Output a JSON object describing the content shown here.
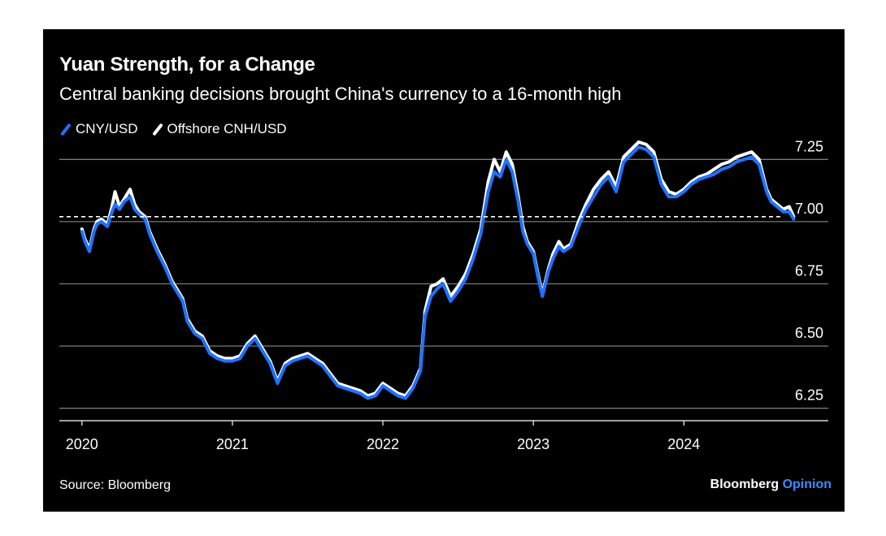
{
  "title": "Yuan Strength, for a Change",
  "subtitle": "Central banking decisions brought China's currency to a 16-month high",
  "source": "Source: Bloomberg",
  "brand": {
    "name": "Bloomberg",
    "suffix": "Opinion"
  },
  "colors": {
    "background": "#000000",
    "cny": "#1f73ff",
    "cnh": "#ffffff",
    "grid": "#7a7a7a",
    "text": "#ffffff",
    "brand_accent": "#3a8cff"
  },
  "chart_data": {
    "type": "line",
    "title": "Yuan Strength, for a Change",
    "subtitle": "Central banking decisions brought China's currency to a 16-month high",
    "xlabel": "",
    "ylabel": "",
    "ylim": [
      6.2,
      7.3
    ],
    "xlim": [
      2019.85,
      2024.96
    ],
    "y_ticks": [
      6.25,
      6.5,
      6.75,
      7.0,
      7.25
    ],
    "y_tick_labels": [
      "6.25",
      "6.50",
      "6.75",
      "7.00",
      "7.25"
    ],
    "x_ticks": [
      2020,
      2021,
      2022,
      2023,
      2024
    ],
    "x_tick_labels": [
      "2020",
      "2021",
      "2022",
      "2023",
      "2024"
    ],
    "reference_line": {
      "y": 7.02,
      "style": "dashed"
    },
    "grid": true,
    "legend_position": "top-left",
    "series": [
      {
        "name": "CNY/USD",
        "color": "#1f73ff",
        "x": [
          2020.0,
          2020.02,
          2020.05,
          2020.08,
          2020.1,
          2020.13,
          2020.17,
          2020.2,
          2020.22,
          2020.25,
          2020.28,
          2020.32,
          2020.35,
          2020.38,
          2020.42,
          2020.45,
          2020.5,
          2020.55,
          2020.6,
          2020.63,
          2020.67,
          2020.7,
          2020.75,
          2020.8,
          2020.85,
          2020.9,
          2020.95,
          2021.0,
          2021.05,
          2021.1,
          2021.15,
          2021.2,
          2021.25,
          2021.3,
          2021.35,
          2021.4,
          2021.45,
          2021.5,
          2021.55,
          2021.6,
          2021.65,
          2021.7,
          2021.75,
          2021.8,
          2021.85,
          2021.9,
          2021.95,
          2022.0,
          2022.05,
          2022.1,
          2022.15,
          2022.2,
          2022.25,
          2022.28,
          2022.32,
          2022.36,
          2022.4,
          2022.45,
          2022.5,
          2022.55,
          2022.6,
          2022.65,
          2022.7,
          2022.74,
          2022.78,
          2022.82,
          2022.86,
          2022.9,
          2022.93,
          2022.96,
          2023.0,
          2023.03,
          2023.06,
          2023.1,
          2023.13,
          2023.17,
          2023.2,
          2023.25,
          2023.3,
          2023.35,
          2023.4,
          2023.45,
          2023.5,
          2023.55,
          2023.6,
          2023.65,
          2023.7,
          2023.75,
          2023.8,
          2023.85,
          2023.9,
          2023.95,
          2024.0,
          2024.05,
          2024.1,
          2024.15,
          2024.2,
          2024.25,
          2024.3,
          2024.35,
          2024.4,
          2024.45,
          2024.5,
          2024.55,
          2024.58,
          2024.62,
          2024.66,
          2024.7,
          2024.73
        ],
        "values": [
          6.96,
          6.92,
          6.88,
          6.96,
          6.99,
          7.0,
          6.98,
          7.04,
          7.07,
          7.05,
          7.08,
          7.1,
          7.05,
          7.03,
          7.01,
          6.95,
          6.88,
          6.82,
          6.75,
          6.72,
          6.68,
          6.6,
          6.55,
          6.53,
          6.47,
          6.45,
          6.44,
          6.44,
          6.45,
          6.5,
          6.53,
          6.48,
          6.43,
          6.35,
          6.42,
          6.44,
          6.45,
          6.46,
          6.44,
          6.42,
          6.38,
          6.34,
          6.33,
          6.32,
          6.31,
          6.29,
          6.3,
          6.34,
          6.32,
          6.3,
          6.29,
          6.33,
          6.4,
          6.62,
          6.7,
          6.73,
          6.75,
          6.68,
          6.72,
          6.77,
          6.85,
          6.95,
          7.12,
          7.2,
          7.18,
          7.25,
          7.2,
          7.08,
          6.96,
          6.91,
          6.87,
          6.78,
          6.7,
          6.8,
          6.85,
          6.9,
          6.88,
          6.9,
          6.98,
          7.05,
          7.1,
          7.15,
          7.18,
          7.12,
          7.24,
          7.27,
          7.3,
          7.29,
          7.26,
          7.15,
          7.1,
          7.1,
          7.12,
          7.15,
          7.17,
          7.18,
          7.19,
          7.21,
          7.22,
          7.24,
          7.25,
          7.26,
          7.23,
          7.12,
          7.08,
          7.06,
          7.04,
          7.04,
          7.01
        ]
      },
      {
        "name": "Offshore CNH/USD",
        "color": "#ffffff",
        "x": [
          2020.0,
          2020.02,
          2020.05,
          2020.08,
          2020.1,
          2020.13,
          2020.17,
          2020.2,
          2020.22,
          2020.25,
          2020.28,
          2020.32,
          2020.35,
          2020.38,
          2020.42,
          2020.45,
          2020.5,
          2020.55,
          2020.6,
          2020.63,
          2020.67,
          2020.7,
          2020.75,
          2020.8,
          2020.85,
          2020.9,
          2020.95,
          2021.0,
          2021.05,
          2021.1,
          2021.15,
          2021.2,
          2021.25,
          2021.3,
          2021.35,
          2021.4,
          2021.45,
          2021.5,
          2021.55,
          2021.6,
          2021.65,
          2021.7,
          2021.75,
          2021.8,
          2021.85,
          2021.9,
          2021.95,
          2022.0,
          2022.05,
          2022.1,
          2022.15,
          2022.2,
          2022.25,
          2022.28,
          2022.32,
          2022.36,
          2022.4,
          2022.45,
          2022.5,
          2022.55,
          2022.6,
          2022.65,
          2022.7,
          2022.74,
          2022.78,
          2022.82,
          2022.86,
          2022.9,
          2022.93,
          2022.96,
          2023.0,
          2023.03,
          2023.06,
          2023.1,
          2023.13,
          2023.17,
          2023.2,
          2023.25,
          2023.3,
          2023.35,
          2023.4,
          2023.45,
          2023.5,
          2023.55,
          2023.6,
          2023.65,
          2023.7,
          2023.75,
          2023.8,
          2023.85,
          2023.9,
          2023.95,
          2024.0,
          2024.05,
          2024.1,
          2024.15,
          2024.2,
          2024.25,
          2024.3,
          2024.35,
          2024.4,
          2024.45,
          2024.5,
          2024.55,
          2024.58,
          2024.62,
          2024.66,
          2024.7,
          2024.73
        ],
        "values": [
          6.97,
          6.93,
          6.89,
          6.97,
          7.0,
          7.01,
          6.99,
          7.06,
          7.12,
          7.06,
          7.09,
          7.13,
          7.07,
          7.04,
          7.02,
          6.96,
          6.89,
          6.83,
          6.76,
          6.73,
          6.69,
          6.61,
          6.56,
          6.54,
          6.48,
          6.46,
          6.45,
          6.45,
          6.46,
          6.51,
          6.54,
          6.49,
          6.44,
          6.36,
          6.43,
          6.45,
          6.46,
          6.47,
          6.45,
          6.43,
          6.39,
          6.35,
          6.34,
          6.33,
          6.32,
          6.3,
          6.31,
          6.35,
          6.33,
          6.31,
          6.3,
          6.34,
          6.41,
          6.64,
          6.74,
          6.75,
          6.77,
          6.7,
          6.74,
          6.79,
          6.87,
          6.97,
          7.16,
          7.25,
          7.2,
          7.28,
          7.23,
          7.1,
          6.98,
          6.92,
          6.88,
          6.79,
          6.71,
          6.81,
          6.87,
          6.92,
          6.89,
          6.91,
          7.0,
          7.07,
          7.13,
          7.17,
          7.2,
          7.14,
          7.26,
          7.29,
          7.32,
          7.31,
          7.28,
          7.17,
          7.12,
          7.11,
          7.13,
          7.16,
          7.18,
          7.19,
          7.21,
          7.23,
          7.24,
          7.26,
          7.27,
          7.28,
          7.25,
          7.13,
          7.09,
          7.07,
          7.05,
          7.06,
          7.02
        ]
      }
    ]
  }
}
